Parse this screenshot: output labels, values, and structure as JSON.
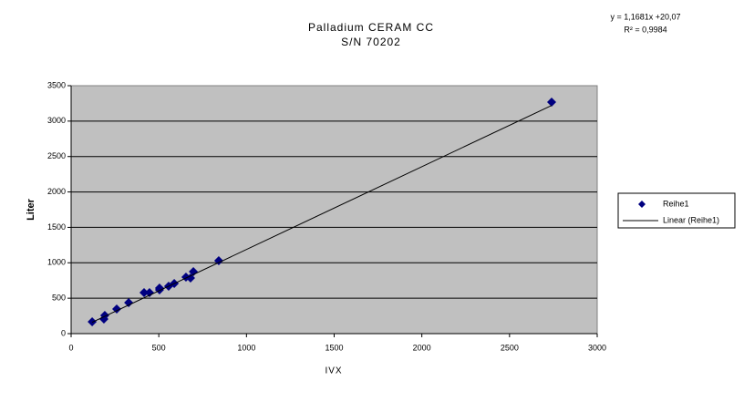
{
  "chart_data": {
    "type": "scatter",
    "title": "Palladium CERAM CC",
    "subtitle": "S/N 70202",
    "annotations": [
      "y = 1,1681x +20,07",
      "R² = 0,9984"
    ],
    "x_label": "IVX",
    "y_label": "Liter",
    "series": [
      {
        "name": "Reihe1",
        "color": "#000080",
        "x": [
          120,
          187,
          192,
          260,
          328,
          416,
          447,
          504,
          504,
          556,
          588,
          655,
          681,
          697,
          842,
          2740
        ],
        "values": [
          167,
          206,
          257,
          347,
          437,
          579,
          579,
          643,
          618,
          669,
          708,
          798,
          785,
          875,
          1029,
          3268
        ]
      },
      {
        "name": "Linear (Reihe1)",
        "color": "#000000",
        "kind": "line",
        "x": [
          120,
          2740
        ],
        "values": [
          160,
          3221
        ]
      }
    ],
    "xlim": [
      0,
      3000
    ],
    "xticks": [
      0,
      500,
      1000,
      1500,
      2000,
      2500,
      3000
    ],
    "ylim": [
      0,
      3500
    ],
    "yticks": [
      0,
      500,
      1000,
      1500,
      2000,
      2500,
      3000,
      3500
    ],
    "grid": true,
    "legend": "right",
    "background": "#c0c0c0"
  }
}
